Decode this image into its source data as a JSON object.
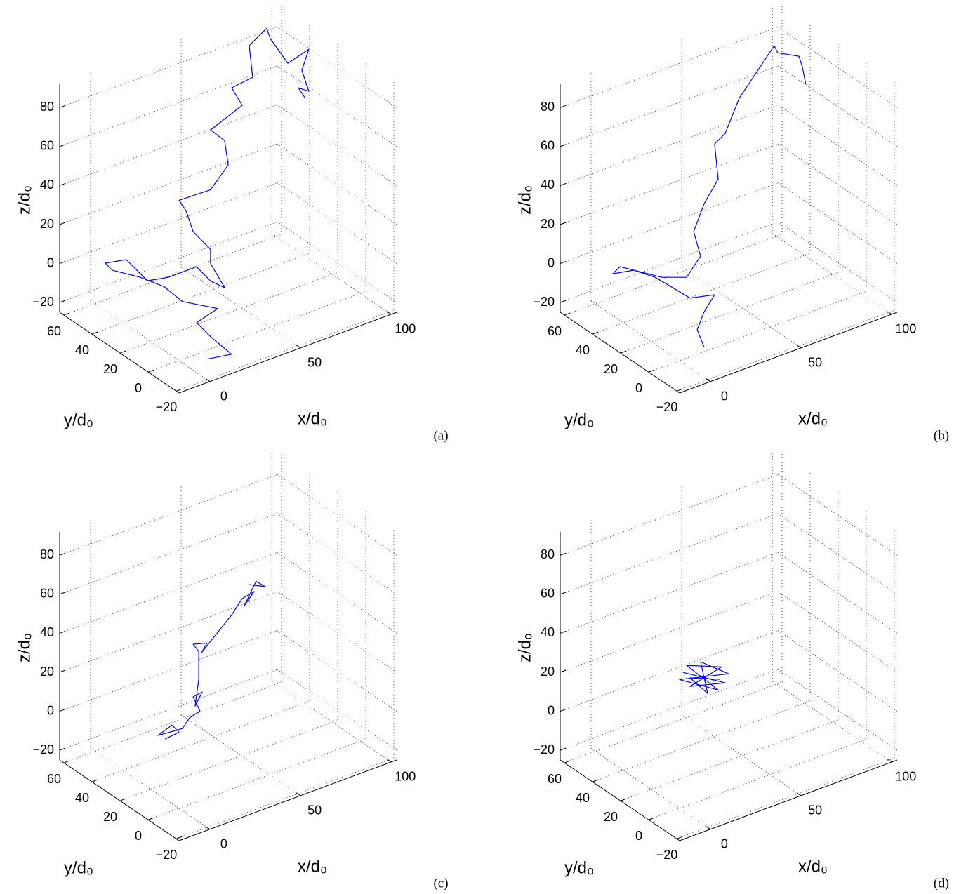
{
  "chart_data": [
    {
      "type": "line3d",
      "panel_label": "(a)",
      "xlabel": "x/d₀",
      "ylabel": "y/d₀",
      "zlabel": "z/d₀",
      "xlim": [
        -17,
        103
      ],
      "ylim": [
        -22,
        63
      ],
      "zlim": [
        -25,
        92
      ],
      "xticks": [
        0,
        50,
        100
      ],
      "yticks": [
        {
          "value": -20,
          "label": "−20"
        },
        0,
        20,
        40,
        60
      ],
      "zticks": [
        {
          "value": -20,
          "label": "−20"
        },
        0,
        20,
        40,
        60,
        80
      ],
      "grid": true,
      "series": [
        {
          "color": "#0000ff",
          "x": [
            7.8,
            21.3,
            9.7,
            2.0,
            13.6,
            -5.8,
            -16,
            -5.8,
            9.7,
            5.8,
            17.4,
            -1.9,
            9.7,
            25.2,
            32.9,
            40.7,
            32.9,
            32.9,
            23.3,
            19.4,
            15.5,
            32.9,
            73.6,
            71.6,
            63.9,
            81.3,
            75.5,
            87.1,
            85.2,
            94.8,
            96.8,
            91.0,
            102.6,
            98.7,
            102.6,
            96.8,
            100.6
          ],
          "y": [
            -10,
            -10,
            -10,
            -10,
            -10,
            -10,
            -10,
            20,
            60,
            60,
            60,
            20,
            20,
            20,
            20,
            20,
            20,
            20,
            20,
            20,
            20,
            20,
            60,
            60,
            60,
            60,
            60,
            60,
            60,
            60,
            60,
            40,
            40,
            40,
            40,
            40,
            40
          ],
          "z": [
            -22.0,
            -24.2,
            -11.2,
            -1.3,
            1.9,
            12.2,
            23.4,
            10.0,
            -11.2,
            -6.2,
            -8.4,
            6.9,
            4.7,
            4.7,
            -5.2,
            -11.4,
            3.8,
            11.0,
            23.4,
            35.5,
            42.2,
            41.6,
            20.8,
            34.0,
            42.1,
            48.7,
            59.7,
            61.1,
            78.0,
            83.6,
            77.6,
            76.7,
            79.9,
            70.4,
            58.3,
            62.1,
            55.4
          ]
        }
      ]
    },
    {
      "type": "line3d",
      "panel_label": "(b)",
      "xlabel": "x/d₀",
      "ylabel": "y/d₀",
      "zlabel": "z/d₀",
      "xlim": [
        -17,
        103
      ],
      "ylim": [
        -22,
        63
      ],
      "zlim": [
        -25,
        92
      ],
      "xticks": [
        0,
        50,
        100
      ],
      "yticks": [
        {
          "value": -20,
          "label": "−20"
        },
        0,
        20,
        40,
        60
      ],
      "zticks": [
        {
          "value": -20,
          "label": "−20"
        },
        0,
        20,
        40,
        60,
        80
      ],
      "grid": true,
      "series": [
        {
          "color": "#0000ff",
          "x": [
            5.8,
            2.0,
            5.8,
            11.6,
            -1.9,
            -11.6,
            2.0,
            -9.6,
            9.7,
            13.6,
            5.8,
            19.4,
            27.1,
            23.3,
            29.1,
            36.8,
            65.8,
            71.6,
            79.4,
            87.1,
            98.7,
            100.6,
            96.8,
            98.7,
            100.6
          ],
          "y": [
            -10,
            -10,
            -10,
            -10,
            -10,
            -10,
            20,
            20,
            60,
            60,
            20,
            20,
            20,
            20,
            20,
            20,
            60,
            60,
            60,
            60,
            60,
            60,
            40,
            40,
            40
          ],
          "z": [
            -15.2,
            -4.9,
            2.8,
            9.7,
            12.6,
            21.4,
            7.3,
            15.0,
            -13.0,
            -10.7,
            6.0,
            1.3,
            9.5,
            23.4,
            35.8,
            45.7,
            34.3,
            37.6,
            53.0,
            61.1,
            73.3,
            69.0,
            78.3,
            72.2,
            62.6
          ]
        }
      ]
    },
    {
      "type": "line3d",
      "panel_label": "(c)",
      "xlabel": "x/d₀",
      "ylabel": "y/d₀",
      "zlabel": "z/d₀",
      "xlim": [
        -17,
        103
      ],
      "ylim": [
        -22,
        63
      ],
      "zlim": [
        -25,
        92
      ],
      "xticks": [
        0,
        50,
        100
      ],
      "yticks": [
        {
          "value": -20,
          "label": "−20"
        },
        0,
        20,
        40,
        60
      ],
      "zticks": [
        {
          "value": -20,
          "label": "−20"
        },
        0,
        20,
        40,
        60,
        80
      ],
      "grid": true,
      "series": [
        {
          "color": "#0000ff",
          "x": [
            7.8,
            15.5,
            11.6,
            3.9,
            17.4,
            21.3,
            27.1,
            23.3,
            28.3,
            24.4,
            26.4,
            26.4,
            23.3,
            31.0,
            27.9,
            75.5,
            81.3,
            87.9,
            82.5,
            89.0,
            94.1,
            85.2
          ],
          "y": [
            20,
            20,
            20,
            20,
            20,
            20,
            20,
            20,
            20,
            20,
            20,
            20,
            20,
            20,
            20,
            60,
            60,
            60,
            60,
            60,
            60,
            60
          ],
          "z": [
            -1.9,
            -1.0,
            4.0,
            1.3,
            0.2,
            4.3,
            5.9,
            14.4,
            15.2,
            9.3,
            22.3,
            36.7,
            41.4,
            39.4,
            35.5,
            19.0,
            25.3,
            26.7,
            21.3,
            31.6,
            27.0,
            31.2
          ]
        }
      ]
    },
    {
      "type": "line3d",
      "panel_label": "(d)",
      "xlabel": "x/d₀",
      "ylabel": "y/d₀",
      "zlabel": "z/d₀",
      "xlim": [
        -17,
        103
      ],
      "ylim": [
        -22,
        63
      ],
      "zlim": [
        -25,
        92
      ],
      "xticks": [
        0,
        50,
        100
      ],
      "yticks": [
        {
          "value": -20,
          "label": "−20"
        },
        0,
        20,
        40,
        60
      ],
      "zticks": [
        {
          "value": -20,
          "label": "−20"
        },
        0,
        20,
        40,
        60,
        80
      ],
      "grid": true,
      "series": [
        {
          "color": "#0000ff",
          "x": [
            17.4,
            40.7,
            21.3,
            38.7,
            19.4,
            36.8,
            15.5,
            42.6,
            27.1,
            31.0,
            21.3,
            37.6
          ],
          "y": [
            20,
            20,
            20,
            20,
            20,
            20,
            20,
            20,
            20,
            20,
            20,
            20
          ],
          "z": [
            29.0,
            15.6,
            20.5,
            24.5,
            31.9,
            13.3,
            26.0,
            19.6,
            31.1,
            13.5,
            24.8,
            18.5
          ]
        }
      ]
    }
  ]
}
